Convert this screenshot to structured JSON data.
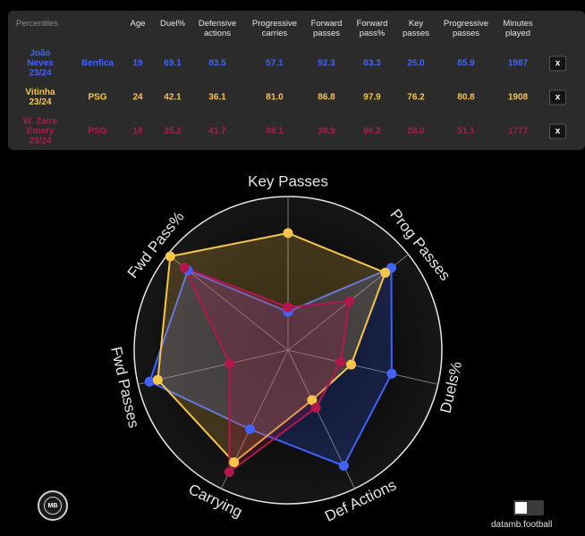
{
  "table": {
    "headers": {
      "percentiles": "Percentiles",
      "age": "Age",
      "duel_pct": "Duel%",
      "defensive_actions": "Defensive actions",
      "progressive_carries": "Progressive carries",
      "forward_passes": "Forward passes",
      "forward_pass_pct": "Forward pass%",
      "key_passes": "Key passes",
      "progressive_passes": "Progressive passes",
      "minutes_played": "Minutes played"
    },
    "rows": [
      {
        "player": "João Neves 23/24",
        "team": "Benfica",
        "age": "19",
        "duel_pct": "69.1",
        "defensive_actions": "83.5",
        "progressive_carries": "57.1",
        "forward_passes": "92.3",
        "forward_pass_pct": "83.3",
        "key_passes": "25.0",
        "progressive_passes": "85.9",
        "minutes_played": "1987",
        "remove_label": "x",
        "color": "#3f63ff"
      },
      {
        "player": "Vitinha 23/24",
        "team": "PSG",
        "age": "24",
        "duel_pct": "42.1",
        "defensive_actions": "36.1",
        "progressive_carries": "81.0",
        "forward_passes": "86.8",
        "forward_pass_pct": "97.9",
        "key_passes": "76.2",
        "progressive_passes": "80.8",
        "minutes_played": "1908",
        "remove_label": "x",
        "color": "#f7c548"
      },
      {
        "player": "W. Zaïre Emery 23/24",
        "team": "PSG",
        "age": "18",
        "duel_pct": "35.2",
        "defensive_actions": "41.7",
        "progressive_carries": "88.1",
        "forward_passes": "38.9",
        "forward_pass_pct": "86.2",
        "key_passes": "28.0",
        "progressive_passes": "51.1",
        "minutes_played": "1777",
        "remove_label": "x",
        "color": "#b0184e"
      }
    ]
  },
  "chart_data": {
    "type": "radar",
    "axes": [
      "Key Passes",
      "Prog Passes",
      "Duels%",
      "Def Actions",
      "Carrying",
      "Fwd Passes",
      "Fwd Pass%"
    ],
    "range": [
      0,
      100
    ],
    "series": [
      {
        "name": "João Neves 23/24",
        "color": "#3f63ff",
        "values": [
          25.0,
          85.9,
          69.1,
          83.5,
          57.1,
          92.3,
          83.3
        ]
      },
      {
        "name": "Vitinha 23/24",
        "color": "#f7c548",
        "values": [
          76.2,
          80.8,
          42.1,
          36.1,
          81.0,
          86.8,
          97.9
        ]
      },
      {
        "name": "W. Zaïre Emery 23/24",
        "color": "#b0184e",
        "values": [
          28.0,
          51.1,
          35.2,
          41.7,
          88.1,
          38.9,
          86.2
        ]
      }
    ]
  },
  "footer": {
    "logo_text": "MB",
    "credit": "datamb.football"
  }
}
